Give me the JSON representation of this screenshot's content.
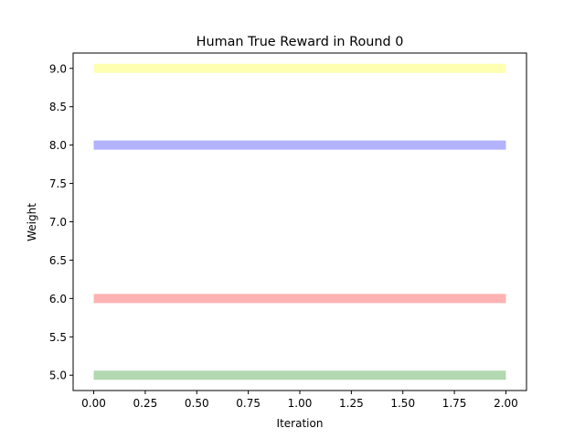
{
  "chart_data": {
    "type": "line",
    "title": "Human True Reward in Round 0",
    "xlabel": "Iteration",
    "ylabel": "Weight",
    "xlim": [
      -0.1,
      2.1
    ],
    "ylim": [
      4.8,
      9.2
    ],
    "xticks": [
      "0.00",
      "0.25",
      "0.50",
      "0.75",
      "1.00",
      "1.25",
      "1.50",
      "1.75",
      "2.00"
    ],
    "yticks": [
      "5.0",
      "5.5",
      "6.0",
      "6.5",
      "7.0",
      "7.5",
      "8.0",
      "8.5",
      "9.0"
    ],
    "grid": false,
    "legend": "none",
    "x": [
      0,
      1,
      2
    ],
    "series": [
      {
        "values": [
          9,
          9,
          9
        ],
        "color": "#ffff66"
      },
      {
        "values": [
          8,
          8,
          8
        ],
        "color": "#6666ff"
      },
      {
        "values": [
          6,
          6,
          6
        ],
        "color": "#ff6666"
      },
      {
        "values": [
          5,
          5,
          5
        ],
        "color": "#66b266"
      }
    ]
  }
}
